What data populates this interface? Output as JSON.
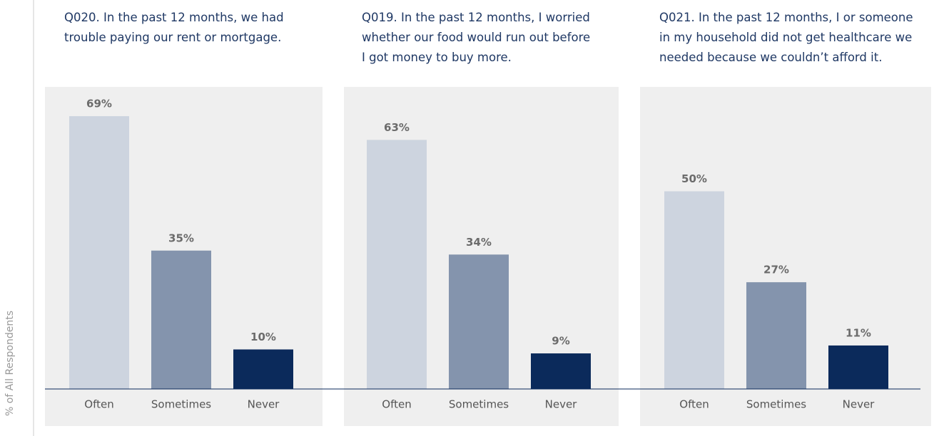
{
  "chart_data": [
    {
      "type": "bar",
      "title": [
        "Q020. In the past 12 months, we had",
        "trouble paying our rent or mortgage."
      ],
      "y_label": "% of All Respondents",
      "categories": [
        "Often",
        "Sometimes",
        "Never"
      ],
      "values": [
        69,
        35,
        10
      ],
      "value_labels": [
        "69%",
        "35%",
        "10%"
      ],
      "colors": [
        "#cdd4df",
        "#8494ad",
        "#0b2a5b"
      ]
    },
    {
      "type": "bar",
      "title": [
        "Q019. In the past 12 months, I worried",
        "whether our food would run out before",
        "I got money to buy more."
      ],
      "categories": [
        "Often",
        "Sometimes",
        "Never"
      ],
      "values": [
        63,
        34,
        9
      ],
      "value_labels": [
        "63%",
        "34%",
        "9%"
      ],
      "colors": [
        "#cdd4df",
        "#8494ad",
        "#0b2a5b"
      ]
    },
    {
      "type": "bar",
      "title": [
        "Q021. In the past 12 months, I or someone",
        "in my household did not get healthcare we",
        "needed because we couldn’t afford it."
      ],
      "categories": [
        "Often",
        "Sometimes",
        "Never"
      ],
      "values": [
        50,
        27,
        11
      ],
      "value_labels": [
        "50%",
        "27%",
        "11%"
      ],
      "colors": [
        "#cdd4df",
        "#8494ad",
        "#0b2a5b"
      ]
    }
  ]
}
